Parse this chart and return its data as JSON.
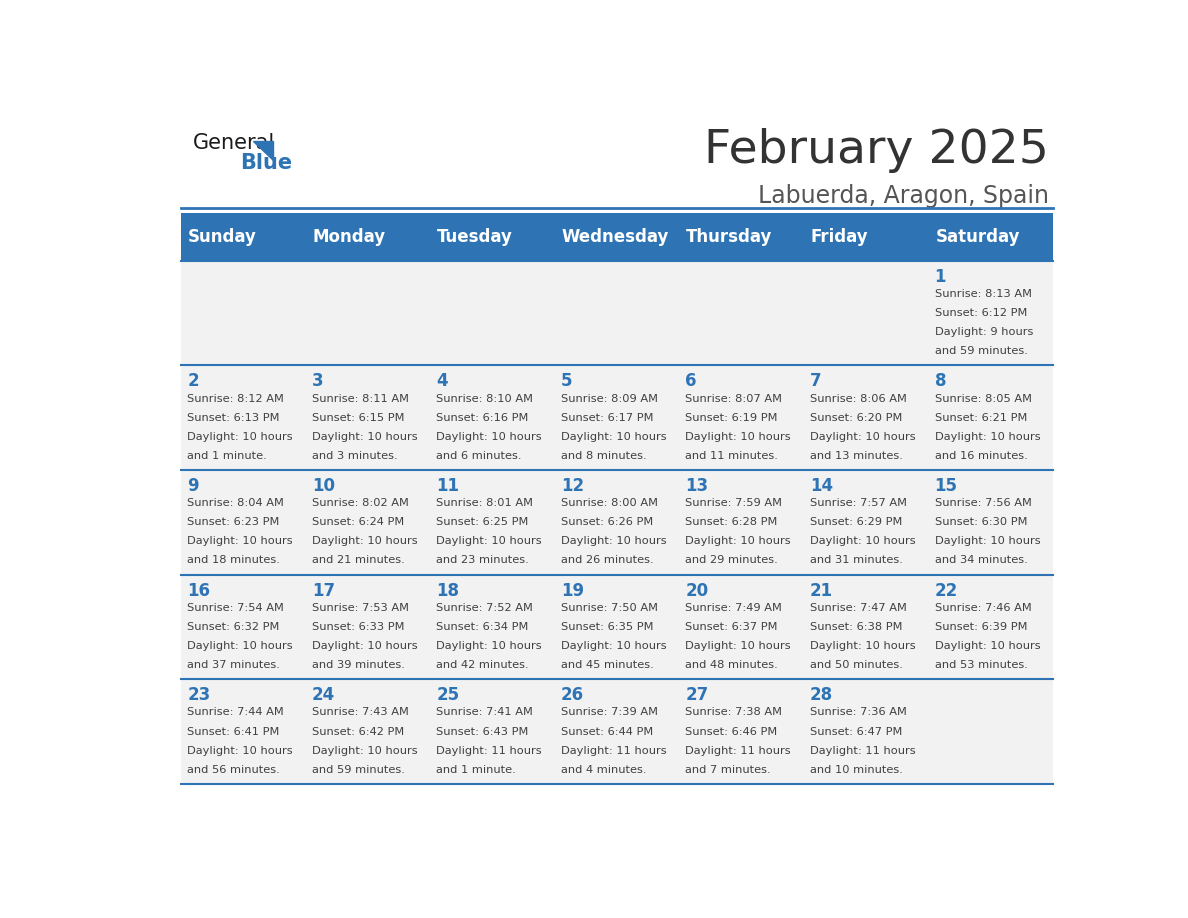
{
  "title": "February 2025",
  "subtitle": "Labuerda, Aragon, Spain",
  "days_of_week": [
    "Sunday",
    "Monday",
    "Tuesday",
    "Wednesday",
    "Thursday",
    "Friday",
    "Saturday"
  ],
  "header_bg": "#2e74b5",
  "header_text_color": "#ffffff",
  "row_bg": "#f2f2f2",
  "divider_color": "#2e74b5",
  "text_color": "#404040",
  "day_num_color": "#2e74b5",
  "title_color": "#333333",
  "subtitle_color": "#555555",
  "calendar_data": [
    [
      {
        "day": "",
        "sunrise": "",
        "sunset": "",
        "daylight": ""
      },
      {
        "day": "",
        "sunrise": "",
        "sunset": "",
        "daylight": ""
      },
      {
        "day": "",
        "sunrise": "",
        "sunset": "",
        "daylight": ""
      },
      {
        "day": "",
        "sunrise": "",
        "sunset": "",
        "daylight": ""
      },
      {
        "day": "",
        "sunrise": "",
        "sunset": "",
        "daylight": ""
      },
      {
        "day": "",
        "sunrise": "",
        "sunset": "",
        "daylight": ""
      },
      {
        "day": "1",
        "sunrise": "8:13 AM",
        "sunset": "6:12 PM",
        "daylight": "9 hours\nand 59 minutes."
      }
    ],
    [
      {
        "day": "2",
        "sunrise": "8:12 AM",
        "sunset": "6:13 PM",
        "daylight": "10 hours\nand 1 minute."
      },
      {
        "day": "3",
        "sunrise": "8:11 AM",
        "sunset": "6:15 PM",
        "daylight": "10 hours\nand 3 minutes."
      },
      {
        "day": "4",
        "sunrise": "8:10 AM",
        "sunset": "6:16 PM",
        "daylight": "10 hours\nand 6 minutes."
      },
      {
        "day": "5",
        "sunrise": "8:09 AM",
        "sunset": "6:17 PM",
        "daylight": "10 hours\nand 8 minutes."
      },
      {
        "day": "6",
        "sunrise": "8:07 AM",
        "sunset": "6:19 PM",
        "daylight": "10 hours\nand 11 minutes."
      },
      {
        "day": "7",
        "sunrise": "8:06 AM",
        "sunset": "6:20 PM",
        "daylight": "10 hours\nand 13 minutes."
      },
      {
        "day": "8",
        "sunrise": "8:05 AM",
        "sunset": "6:21 PM",
        "daylight": "10 hours\nand 16 minutes."
      }
    ],
    [
      {
        "day": "9",
        "sunrise": "8:04 AM",
        "sunset": "6:23 PM",
        "daylight": "10 hours\nand 18 minutes."
      },
      {
        "day": "10",
        "sunrise": "8:02 AM",
        "sunset": "6:24 PM",
        "daylight": "10 hours\nand 21 minutes."
      },
      {
        "day": "11",
        "sunrise": "8:01 AM",
        "sunset": "6:25 PM",
        "daylight": "10 hours\nand 23 minutes."
      },
      {
        "day": "12",
        "sunrise": "8:00 AM",
        "sunset": "6:26 PM",
        "daylight": "10 hours\nand 26 minutes."
      },
      {
        "day": "13",
        "sunrise": "7:59 AM",
        "sunset": "6:28 PM",
        "daylight": "10 hours\nand 29 minutes."
      },
      {
        "day": "14",
        "sunrise": "7:57 AM",
        "sunset": "6:29 PM",
        "daylight": "10 hours\nand 31 minutes."
      },
      {
        "day": "15",
        "sunrise": "7:56 AM",
        "sunset": "6:30 PM",
        "daylight": "10 hours\nand 34 minutes."
      }
    ],
    [
      {
        "day": "16",
        "sunrise": "7:54 AM",
        "sunset": "6:32 PM",
        "daylight": "10 hours\nand 37 minutes."
      },
      {
        "day": "17",
        "sunrise": "7:53 AM",
        "sunset": "6:33 PM",
        "daylight": "10 hours\nand 39 minutes."
      },
      {
        "day": "18",
        "sunrise": "7:52 AM",
        "sunset": "6:34 PM",
        "daylight": "10 hours\nand 42 minutes."
      },
      {
        "day": "19",
        "sunrise": "7:50 AM",
        "sunset": "6:35 PM",
        "daylight": "10 hours\nand 45 minutes."
      },
      {
        "day": "20",
        "sunrise": "7:49 AM",
        "sunset": "6:37 PM",
        "daylight": "10 hours\nand 48 minutes."
      },
      {
        "day": "21",
        "sunrise": "7:47 AM",
        "sunset": "6:38 PM",
        "daylight": "10 hours\nand 50 minutes."
      },
      {
        "day": "22",
        "sunrise": "7:46 AM",
        "sunset": "6:39 PM",
        "daylight": "10 hours\nand 53 minutes."
      }
    ],
    [
      {
        "day": "23",
        "sunrise": "7:44 AM",
        "sunset": "6:41 PM",
        "daylight": "10 hours\nand 56 minutes."
      },
      {
        "day": "24",
        "sunrise": "7:43 AM",
        "sunset": "6:42 PM",
        "daylight": "10 hours\nand 59 minutes."
      },
      {
        "day": "25",
        "sunrise": "7:41 AM",
        "sunset": "6:43 PM",
        "daylight": "11 hours\nand 1 minute."
      },
      {
        "day": "26",
        "sunrise": "7:39 AM",
        "sunset": "6:44 PM",
        "daylight": "11 hours\nand 4 minutes."
      },
      {
        "day": "27",
        "sunrise": "7:38 AM",
        "sunset": "6:46 PM",
        "daylight": "11 hours\nand 7 minutes."
      },
      {
        "day": "28",
        "sunrise": "7:36 AM",
        "sunset": "6:47 PM",
        "daylight": "11 hours\nand 10 minutes."
      },
      {
        "day": "",
        "sunrise": "",
        "sunset": "",
        "daylight": ""
      }
    ]
  ],
  "blue_color": "#2e74b5",
  "dark_color": "#1a1a1a"
}
